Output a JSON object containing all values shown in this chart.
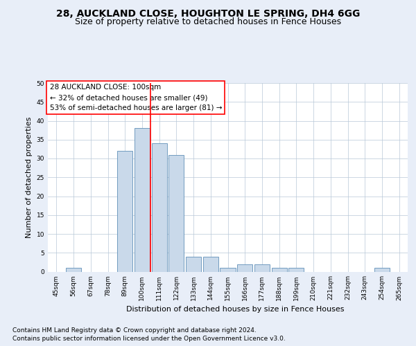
{
  "title1": "28, AUCKLAND CLOSE, HOUGHTON LE SPRING, DH4 6GG",
  "title2": "Size of property relative to detached houses in Fence Houses",
  "xlabel": "Distribution of detached houses by size in Fence Houses",
  "ylabel": "Number of detached properties",
  "footer1": "Contains HM Land Registry data © Crown copyright and database right 2024.",
  "footer2": "Contains public sector information licensed under the Open Government Licence v3.0.",
  "annotation_line1": "28 AUCKLAND CLOSE: 100sqm",
  "annotation_line2": "← 32% of detached houses are smaller (49)",
  "annotation_line3": "53% of semi-detached houses are larger (81) →",
  "bar_labels": [
    "45sqm",
    "56sqm",
    "67sqm",
    "78sqm",
    "89sqm",
    "100sqm",
    "111sqm",
    "122sqm",
    "133sqm",
    "144sqm",
    "155sqm",
    "166sqm",
    "177sqm",
    "188sqm",
    "199sqm",
    "210sqm",
    "221sqm",
    "232sqm",
    "243sqm",
    "254sqm",
    "265sqm"
  ],
  "bar_values": [
    0,
    1,
    0,
    0,
    32,
    38,
    34,
    31,
    4,
    4,
    1,
    2,
    2,
    1,
    1,
    0,
    0,
    0,
    0,
    1,
    0
  ],
  "bar_color": "#c9d9ea",
  "bar_edge_color": "#6090b8",
  "redline_index": 5,
  "ylim": [
    0,
    50
  ],
  "yticks": [
    0,
    5,
    10,
    15,
    20,
    25,
    30,
    35,
    40,
    45,
    50
  ],
  "bg_color": "#e8eef8",
  "plot_bg_color": "#ffffff",
  "title_fontsize": 10,
  "subtitle_fontsize": 9,
  "annotation_fontsize": 7.5,
  "axis_label_fontsize": 8,
  "ylabel_fontsize": 8,
  "tick_fontsize": 6.5,
  "footer_fontsize": 6.5
}
